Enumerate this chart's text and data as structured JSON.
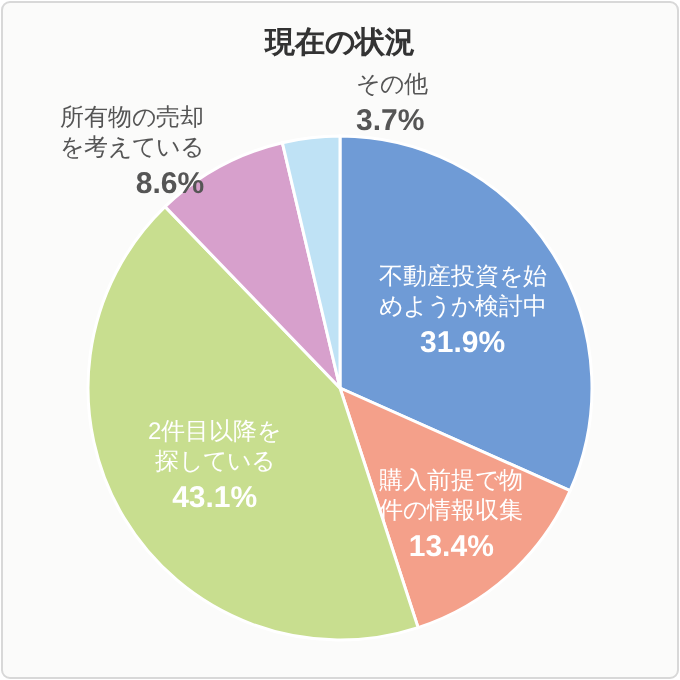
{
  "chart_data": {
    "type": "pie",
    "title": "現在の状況",
    "categories": [
      "不動産投資を始めようか検討中",
      "購入前提で物件の情報収集",
      "2件目以降を探している",
      "所有物の売却を考えている",
      "その他"
    ],
    "values": [
      31.9,
      13.4,
      43.1,
      8.6,
      3.7
    ],
    "value_labels": [
      "31.9%",
      "13.4%",
      "43.1%",
      "8.6%",
      "3.7%"
    ],
    "colors": [
      "#6f9bd6",
      "#f4a08a",
      "#c8de8f",
      "#d7a0cc",
      "#bfe2f5"
    ]
  }
}
